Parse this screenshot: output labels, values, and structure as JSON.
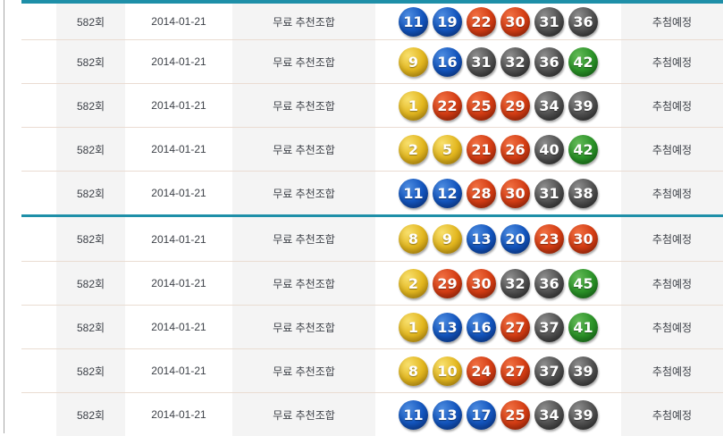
{
  "page": {
    "accent_color": "#1e8fa8",
    "divider_color": "#eadcd2",
    "shaded_cell_color": "#f4f4f4",
    "text_color": "#3d4148",
    "left_rule_color": "#a6a6a6",
    "ball_colors": {
      "yellow": {
        "light": "#f8e06e",
        "mid": "#e3b71f",
        "dark": "#a87c08"
      },
      "blue": {
        "light": "#4d8ce0",
        "mid": "#1355be",
        "dark": "#082e7c"
      },
      "red": {
        "light": "#f07042",
        "mid": "#d53d14",
        "dark": "#8c1d03"
      },
      "gray": {
        "light": "#8d8d8d",
        "mid": "#515151",
        "dark": "#1f1f1f"
      },
      "green": {
        "light": "#63b957",
        "mid": "#2b9328",
        "dark": "#0e5a10"
      }
    }
  },
  "table": {
    "groups": [
      {
        "rows": [
          {
            "round": "582회",
            "date": "2014-01-21",
            "type": "무료 추천조합",
            "numbers": [
              11,
              19,
              22,
              30,
              31,
              36
            ],
            "status": "추첨예정"
          },
          {
            "round": "582회",
            "date": "2014-01-21",
            "type": "무료 추천조합",
            "numbers": [
              9,
              16,
              31,
              32,
              36,
              42
            ],
            "status": "추첨예정"
          },
          {
            "round": "582회",
            "date": "2014-01-21",
            "type": "무료 추천조합",
            "numbers": [
              1,
              22,
              25,
              29,
              34,
              39
            ],
            "status": "추첨예정"
          },
          {
            "round": "582회",
            "date": "2014-01-21",
            "type": "무료 추천조합",
            "numbers": [
              2,
              5,
              21,
              26,
              40,
              42
            ],
            "status": "추첨예정"
          },
          {
            "round": "582회",
            "date": "2014-01-21",
            "type": "무료 추천조합",
            "numbers": [
              11,
              12,
              28,
              30,
              31,
              38
            ],
            "status": "추첨예정"
          }
        ]
      },
      {
        "rows": [
          {
            "round": "582회",
            "date": "2014-01-21",
            "type": "무료 추천조합",
            "numbers": [
              8,
              9,
              13,
              20,
              23,
              30
            ],
            "status": "추첨예정"
          },
          {
            "round": "582회",
            "date": "2014-01-21",
            "type": "무료 추천조합",
            "numbers": [
              2,
              29,
              30,
              32,
              36,
              45
            ],
            "status": "추첨예정"
          },
          {
            "round": "582회",
            "date": "2014-01-21",
            "type": "무료 추천조합",
            "numbers": [
              1,
              13,
              16,
              27,
              37,
              41
            ],
            "status": "추첨예정"
          },
          {
            "round": "582회",
            "date": "2014-01-21",
            "type": "무료 추천조합",
            "numbers": [
              8,
              10,
              24,
              27,
              37,
              39
            ],
            "status": "추첨예정"
          },
          {
            "round": "582회",
            "date": "2014-01-21",
            "type": "무료 추천조합",
            "numbers": [
              11,
              13,
              17,
              25,
              34,
              39
            ],
            "status": "추첨예정"
          }
        ]
      }
    ]
  }
}
